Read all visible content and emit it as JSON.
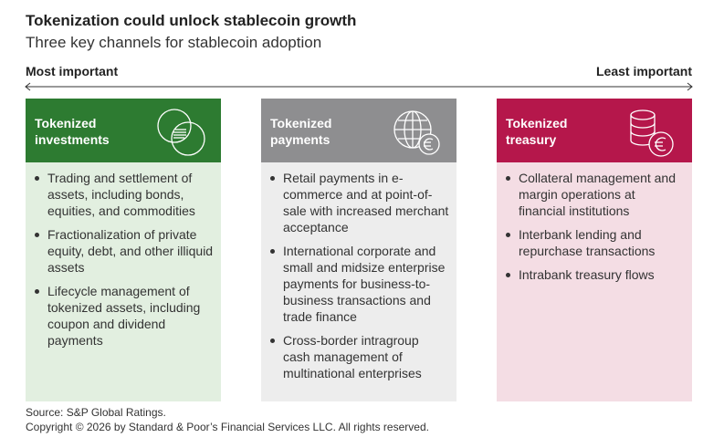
{
  "title": "Tokenization could unlock stablecoin growth",
  "subtitle": "Three key channels for stablecoin adoption",
  "scale": {
    "left": "Most important",
    "right": "Least important"
  },
  "columns": [
    {
      "title": "Tokenized investments",
      "bullets": [
        "Trading and settlement of assets, including bonds, equities, and commodities",
        "Fractionalization of private equity, debt, and other illiquid assets",
        "Lifecycle management of tokenized assets, including coupon and dividend payments"
      ]
    },
    {
      "title": "Tokenized payments",
      "bullets": [
        "Retail payments in e-commerce and at point-of-sale with increased merchant acceptance",
        "International corporate and small and midsize enterprise payments for business-to-business transactions and trade finance",
        "Cross-border intragroup cash management of multinational enterprises"
      ]
    },
    {
      "title": "Tokenized treasury",
      "bullets": [
        "Collateral management and margin operations at financial institutions",
        "Interbank lending and repurchase transactions",
        "Intrabank treasury flows"
      ]
    }
  ],
  "footer": {
    "source": "Source: S&P Global Ratings.",
    "copyright": "Copyright © 2026 by Standard & Poor’s Financial Services LLC. All rights reserved."
  }
}
